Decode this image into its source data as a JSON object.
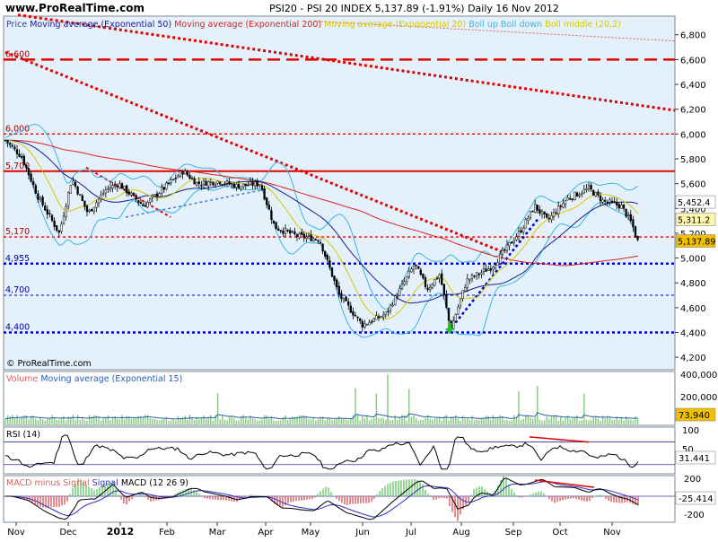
{
  "header": {
    "site": "www.ProRealTime.com",
    "title": "PSI20 - PSI 20 INDEX    5,137.89 (-1.91%)    Daily  16 Nov 2012"
  },
  "colors": {
    "price_bg": "#e4f1fa",
    "ema50": "#1a1a8f",
    "ema200": "#e02020",
    "ma20": "#d7c800",
    "boll": "#38b6e6",
    "hline_red": "#e00000",
    "hline_blue": "#0000cc",
    "volume_bar": "#84c97a",
    "volume_ma": "#2a5fa8",
    "rsi_line": "#000000",
    "macd_hist": "#7ad07a",
    "signal": "#3030cc",
    "macd": "#000000"
  },
  "chart_data": [
    {
      "type": "candlestick",
      "panel": "price",
      "legend": [
        "Price",
        "Moving average (Exponential 50)",
        "Moving average (Exponential 200)",
        "Moving average (Exponential 20)",
        "Boll up",
        "Boll down",
        "Boll middle (20,2)"
      ],
      "y_ticks": [
        4200,
        4400,
        4600,
        4800,
        5000,
        5200,
        5400,
        5600,
        5800,
        6000,
        6200,
        6400,
        6600,
        6800
      ],
      "y_tick_labels": [
        "4,200",
        "4,400",
        "4,600",
        "4,800",
        "5,000",
        "5,200",
        "5,400",
        "5,600",
        "5,800",
        "6,000",
        "6,200",
        "6,400",
        "6,600",
        "6,800"
      ],
      "ylim": [
        4100,
        6950
      ],
      "x_labels": [
        "Nov",
        "Dec",
        "2012",
        "Feb",
        "Mar",
        "Apr",
        "May",
        "Jun",
        "Jul",
        "Aug",
        "Sep",
        "Oct",
        "Nov"
      ],
      "horizontal_levels": [
        {
          "value": 6600,
          "label": "6,600",
          "style": "red-dashed"
        },
        {
          "value": 6000,
          "label": "6,000",
          "style": "red-dotted"
        },
        {
          "value": 5700,
          "label": "5,700",
          "style": "red-solid"
        },
        {
          "value": 5170,
          "label": "5,170",
          "style": "red-dotted"
        },
        {
          "value": 4955,
          "label": "4,955",
          "style": "blue-dotted"
        },
        {
          "value": 4700,
          "label": "4,700",
          "style": "blue-dotted-thin"
        },
        {
          "value": 4400,
          "label": "4,400",
          "style": "blue-dotted"
        }
      ],
      "value_boxes": [
        "5,452.4",
        "5,311.2",
        "5,137.89"
      ],
      "close_path": [
        [
          "Nov-2011",
          5950
        ],
        [
          "Nov-2011",
          5820
        ],
        [
          "Nov-2011",
          5500
        ],
        [
          "Dec-2011",
          5200
        ],
        [
          "Dec-2011",
          5640
        ],
        [
          "Dec-2011",
          5360
        ],
        [
          "2012",
          5550
        ],
        [
          "2012",
          5600
        ],
        [
          "Jan-2012",
          5420
        ],
        [
          "Feb-2012",
          5700
        ],
        [
          "Feb-2012",
          5600
        ],
        [
          "Mar-2012",
          5620
        ],
        [
          "Mar-2012",
          5580
        ],
        [
          "Apr-2012",
          5600
        ],
        [
          "Apr-2012",
          5250
        ],
        [
          "May-2012",
          5180
        ],
        [
          "May-2012",
          5150
        ],
        [
          "May-2012",
          4700
        ],
        [
          "Jun-2012",
          4460
        ],
        [
          "Jun-2012",
          4550
        ],
        [
          "Jul-2012",
          4950
        ],
        [
          "Jul-2012",
          4750
        ],
        [
          "Jul-2012",
          4870
        ],
        [
          "Aug-2012",
          4420
        ],
        [
          "Aug-2012",
          4820
        ],
        [
          "Aug-2012",
          4930
        ],
        [
          "Sep-2012",
          5220
        ],
        [
          "Sep-2012",
          5420
        ],
        [
          "Sep-2012",
          5300
        ],
        [
          "Oct-2012",
          5480
        ],
        [
          "Oct-2012",
          5560
        ],
        [
          "Oct-2012",
          5460
        ],
        [
          "Nov-2012",
          5420
        ],
        [
          "Nov-2012",
          5280
        ],
        [
          "Nov-2012",
          5137.89
        ]
      ]
    },
    {
      "type": "bar",
      "panel": "volume",
      "legend": [
        "Volume",
        "Moving average (Exponential 15)"
      ],
      "y_tick_labels": [
        "400,000",
        "200,000"
      ],
      "value_box": "73,940"
    },
    {
      "type": "line",
      "panel": "rsi",
      "legend": [
        "RSI (14)"
      ],
      "y_tick_labels": [
        "100",
        "50"
      ],
      "value_box": "31.441",
      "levels": [
        70,
        30
      ]
    },
    {
      "type": "line",
      "panel": "macd",
      "legend": [
        "MACD minus Signal",
        "Signal",
        "MACD (12 26 9)"
      ],
      "y_tick_labels": [
        "200",
        "-200"
      ],
      "value_box": "-25.414"
    }
  ],
  "footer": {
    "watermark": "© ProRealTime.com"
  }
}
